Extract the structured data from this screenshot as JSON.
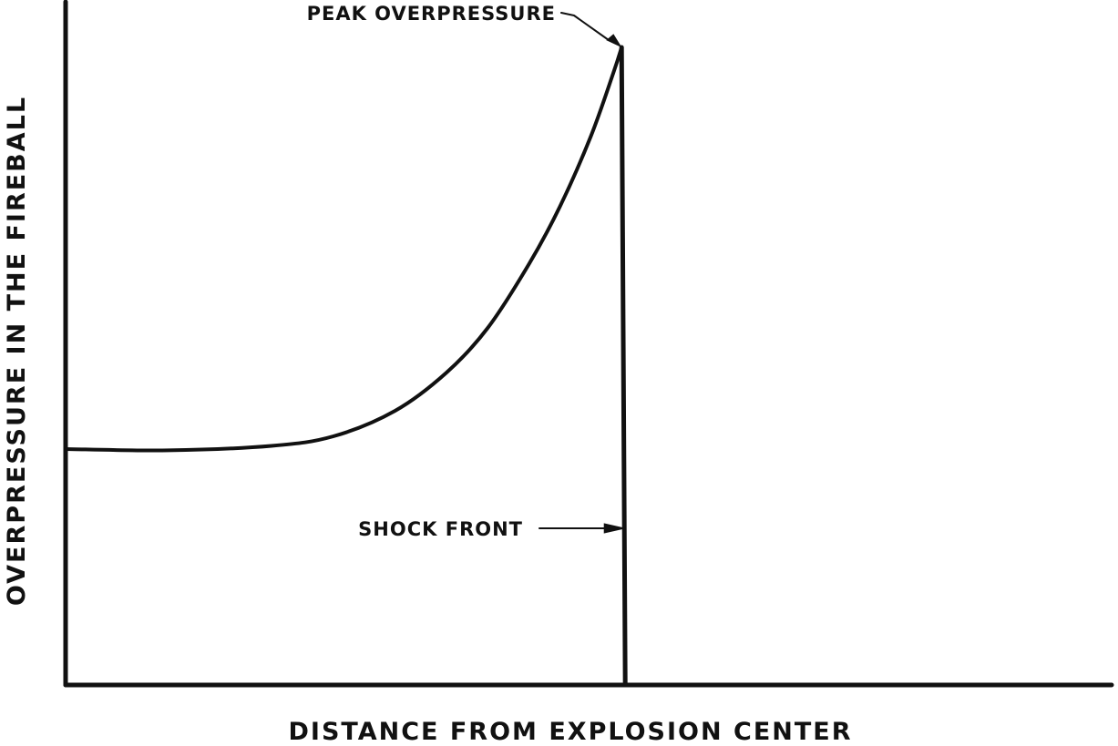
{
  "chart_data": {
    "type": "line",
    "xlabel": "DISTANCE FROM EXPLOSION CENTER",
    "ylabel": "OVERPRESSURE IN THE FIREBALL",
    "xlim": [
      0,
      1.0
    ],
    "ylim": [
      0,
      1.0
    ],
    "grid": false,
    "series": [
      {
        "x": [
          0.0,
          0.1,
          0.2,
          0.26,
          0.32,
          0.37,
          0.41,
          0.45,
          0.48,
          0.51,
          0.532,
          0.54
        ],
        "values": [
          0.37,
          0.368,
          0.375,
          0.39,
          0.43,
          0.49,
          0.56,
          0.66,
          0.75,
          0.86,
          0.96,
          1.0
        ]
      }
    ],
    "shock_front_x": 0.54,
    "annotations": [
      {
        "text": "PEAK OVERPRESSURE"
      },
      {
        "text": "SHOCK FRONT"
      }
    ]
  }
}
